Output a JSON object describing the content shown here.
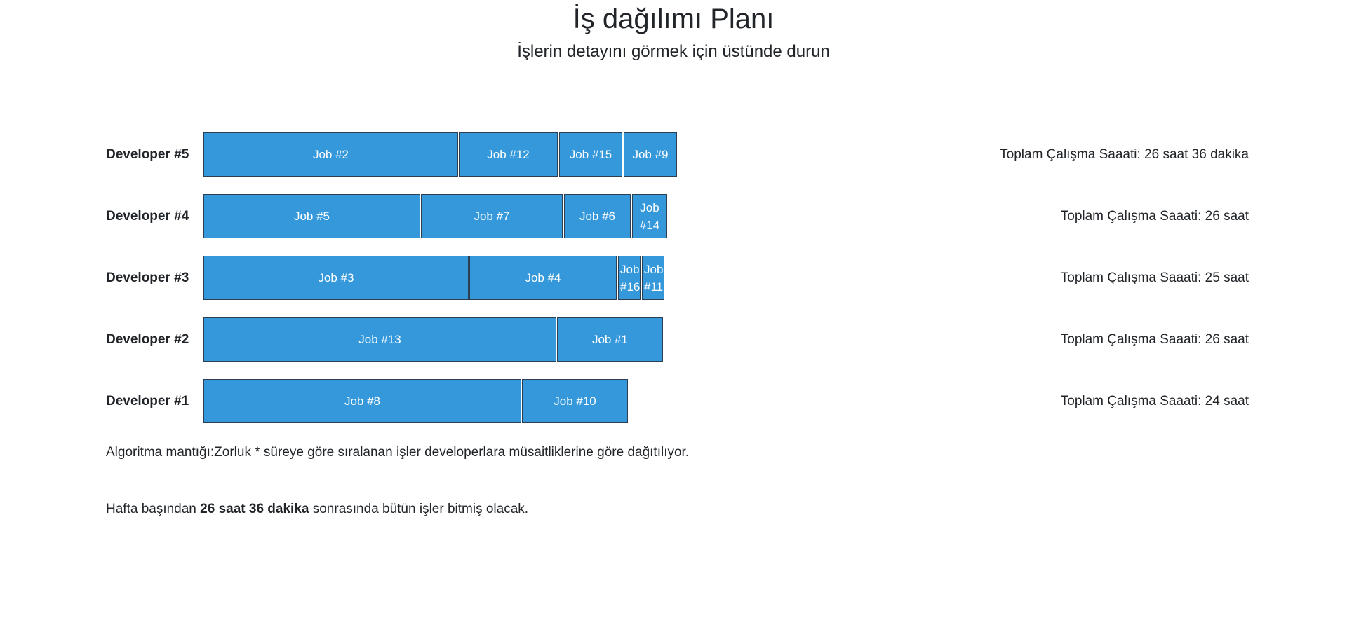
{
  "header": {
    "title": "İş dağılımı Planı",
    "subtitle": "İşlerin detayını görmek için üstünde durun"
  },
  "developers": [
    {
      "name": "Developer #5",
      "total": "Toplam Çalışma Saaati: 26 saat 36 dakika",
      "jobs": [
        "Job #2",
        "Job #12",
        "Job #15",
        "Job #9"
      ]
    },
    {
      "name": "Developer #4",
      "total": "Toplam Çalışma Saaati: 26 saat",
      "jobs": [
        "Job #5",
        "Job #7",
        "Job #6",
        "Job #14"
      ]
    },
    {
      "name": "Developer #3",
      "total": "Toplam Çalışma Saaati: 25 saat",
      "jobs": [
        "Job #3",
        "Job #4",
        "Job #16",
        "Job #11"
      ]
    },
    {
      "name": "Developer #2",
      "total": "Toplam Çalışma Saaati: 26 saat",
      "jobs": [
        "Job #13",
        "Job #1"
      ]
    },
    {
      "name": "Developer #1",
      "total": "Toplam Çalışma Saaati: 24 saat",
      "jobs": [
        "Job #8",
        "Job #10"
      ]
    }
  ],
  "footer": {
    "algorithm": "Algoritma mantığı:Zorluk * süreye göre sıralanan işler developerlara müsaitliklerine göre dağıtılıyor.",
    "summary_prefix": "Hafta başından ",
    "summary_bold": "26 saat 36 dakika",
    "summary_suffix": " sonrasında bütün işler bitmiş olacak."
  },
  "colors": {
    "job_fill": "#3598db",
    "job_border": "#2c3e50",
    "text": "#212529"
  }
}
